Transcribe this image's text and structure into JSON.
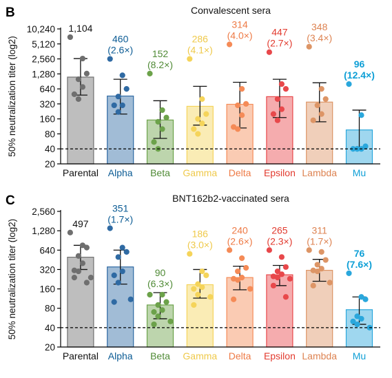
{
  "chart_data": [
    {
      "type": "bar",
      "panel_letter": "B",
      "title": "Convalescent sera",
      "ylabel": "50% neutralization titer (log2)",
      "xlabel": "",
      "yscale": "log2",
      "ylim": [
        20,
        10240
      ],
      "ytick_values": [
        20,
        40,
        80,
        160,
        320,
        640,
        1280,
        2560,
        5120,
        10240
      ],
      "ytick_labels": [
        "20",
        "40",
        "80",
        "160",
        "320",
        "640",
        "1,280",
        "2,560",
        "5,120",
        "10,240"
      ],
      "reference_line": 40,
      "categories": [
        "Parental",
        "Alpha",
        "Beta",
        "Gamma",
        "Delta",
        "Epsilon",
        "Lambda",
        "Mu"
      ],
      "values": [
        1104,
        460,
        152,
        286,
        314,
        447,
        348,
        96
      ],
      "value_labels": [
        "1,104",
        "460",
        "152",
        "286",
        "314",
        "447",
        "348",
        "96"
      ],
      "fold_labels": [
        "",
        "(2.6×)",
        "(8.2×)",
        "(4.1×)",
        "(4.0×)",
        "(2.7×)",
        "(3.4×)",
        "(12.4×)"
      ],
      "error_low": [
        480,
        200,
        65,
        120,
        105,
        170,
        140,
        40
      ],
      "error_high": [
        2600,
        1000,
        370,
        720,
        870,
        1000,
        850,
        240
      ],
      "points": [
        [
          7000,
          2600,
          1300,
          1000,
          700,
          500,
          400
        ],
        [
          2560,
          1200,
          640,
          450,
          300,
          300,
          220
        ],
        [
          1300,
          240,
          170,
          140,
          100,
          55,
          40
        ],
        [
          2560,
          400,
          200,
          160,
          130,
          100,
          80
        ],
        [
          5000,
          640,
          320,
          300,
          190,
          110,
          100
        ],
        [
          3500,
          800,
          640,
          400,
          250,
          200,
          150
        ],
        [
          4500,
          640,
          400,
          300,
          200,
          150
        ],
        [
          800,
          190,
          45,
          40,
          40,
          40,
          40
        ]
      ],
      "colors": [
        "#6f6f6f",
        "#2f6aa3",
        "#6ca24a",
        "#f5d45a",
        "#f58b57",
        "#e8484b",
        "#dd9566",
        "#2aa7dc"
      ],
      "label_colors": [
        "#111111",
        "#0b5b94",
        "#4f8a35",
        "#efc94a",
        "#ee7a45",
        "#e23a2e",
        "#dd8250",
        "#0e9fd6"
      ],
      "bold_value": [
        false,
        false,
        false,
        false,
        false,
        false,
        false,
        true
      ]
    },
    {
      "type": "bar",
      "panel_letter": "C",
      "title": "BNT162b2-vaccinated sera",
      "ylabel": "50% neutralization titer (log2)",
      "xlabel": "",
      "yscale": "log2",
      "ylim": [
        20,
        2560
      ],
      "ytick_values": [
        20,
        40,
        80,
        160,
        320,
        640,
        1280,
        2560
      ],
      "ytick_labels": [
        "20",
        "40",
        "80",
        "160",
        "320",
        "640",
        "1,280",
        "2,560"
      ],
      "reference_line": 40,
      "categories": [
        "Parental",
        "Alpha",
        "Beta",
        "Gamma",
        "Delta",
        "Epsilon",
        "Lambda",
        "Mu"
      ],
      "values": [
        497,
        351,
        90,
        186,
        240,
        265,
        311,
        76
      ],
      "value_labels": [
        "497",
        "351",
        "90",
        "186",
        "240",
        "265",
        "311",
        "76"
      ],
      "fold_labels": [
        "",
        "(1.7×)",
        "(6.3×)",
        "(3.0×)",
        "(2.6×)",
        "(2.3×)",
        "(1.7×)",
        "(7.6×)"
      ],
      "error_low": [
        320,
        190,
        55,
        115,
        155,
        180,
        210,
        45
      ],
      "error_high": [
        760,
        640,
        140,
        320,
        360,
        370,
        460,
        120
      ],
      "points": [
        [
          1200,
          760,
          700,
          520,
          400,
          310,
          300,
          240,
          240,
          200
        ],
        [
          1400,
          700,
          600,
          500,
          300,
          260,
          200,
          110,
          100
        ],
        [
          130,
          130,
          100,
          90,
          75,
          70,
          60,
          50,
          45
        ],
        [
          560,
          300,
          260,
          190,
          170,
          160,
          130,
          120,
          90
        ],
        [
          640,
          480,
          340,
          300,
          240,
          230,
          220,
          160,
          110
        ],
        [
          640,
          500,
          350,
          300,
          270,
          250,
          240,
          230,
          180,
          120
        ],
        [
          640,
          600,
          450,
          380,
          330,
          310,
          300,
          200,
          180
        ],
        [
          280,
          120,
          110,
          60,
          55,
          50,
          45,
          40
        ]
      ],
      "colors": [
        "#6f6f6f",
        "#2f6aa3",
        "#6ca24a",
        "#f5d45a",
        "#f58b57",
        "#e8484b",
        "#dd9566",
        "#2aa7dc"
      ],
      "label_colors": [
        "#111111",
        "#0b5b94",
        "#4f8a35",
        "#efc94a",
        "#ee7a45",
        "#e23a2e",
        "#dd8250",
        "#0e9fd6"
      ],
      "bold_value": [
        false,
        false,
        false,
        false,
        false,
        false,
        false,
        true
      ]
    }
  ]
}
